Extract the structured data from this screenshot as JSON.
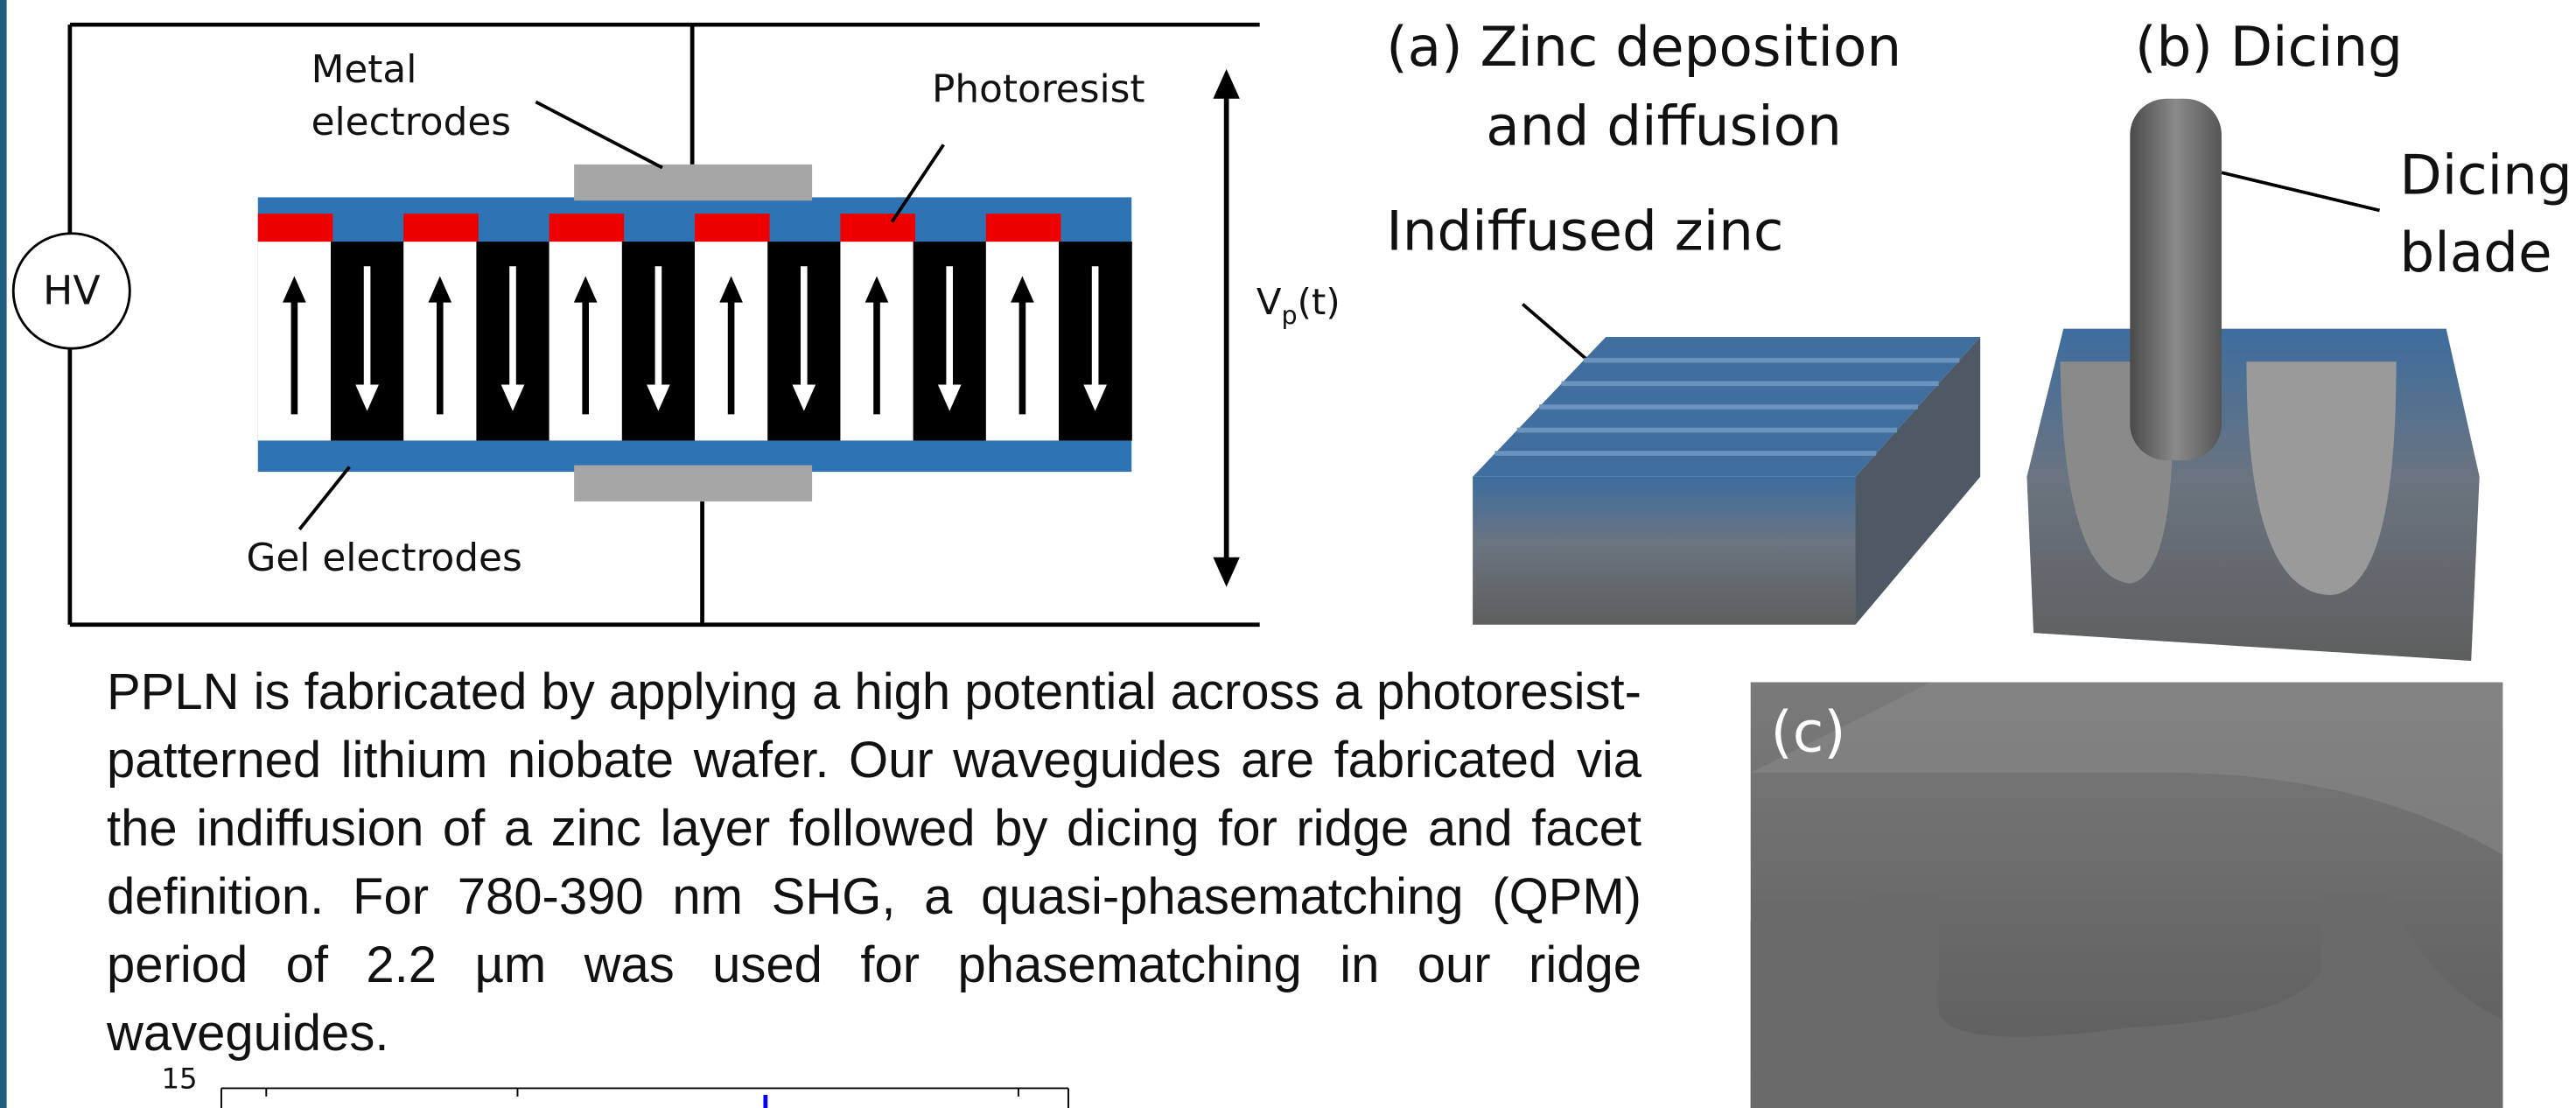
{
  "figure": {
    "schematic": {
      "metal_electrodes": [
        "Metal",
        "electrodes"
      ],
      "photoresist": "Photoresist",
      "hv": "HV",
      "voltage": {
        "main": "V",
        "sub": "p",
        "rest": "(t)"
      },
      "gel_electrodes": "Gel electrodes"
    },
    "panel_a": {
      "label": [
        "(a)  Zinc deposition",
        "and diffusion"
      ],
      "indiffused": "Indiffused zinc"
    },
    "panel_b": {
      "label": "(b) Dicing",
      "blade": [
        "Dicing",
        "blade"
      ]
    },
    "panel_c": {
      "label": "(c)"
    }
  },
  "body": {
    "paragraph": "PPLN is fabricated by applying a high potential across a photoresist-patterned lithium niobate wafer. Our waveguides are fabricated via the indiffusion of a zinc layer followed by dicing for ridge and facet definition. For 780-390 nm SHG, a quasi-phasematching (QPM) period of 2.2 µm was used for phasematching in our ridge waveguides."
  },
  "bottom_chart": {
    "top_tick": "15"
  }
}
